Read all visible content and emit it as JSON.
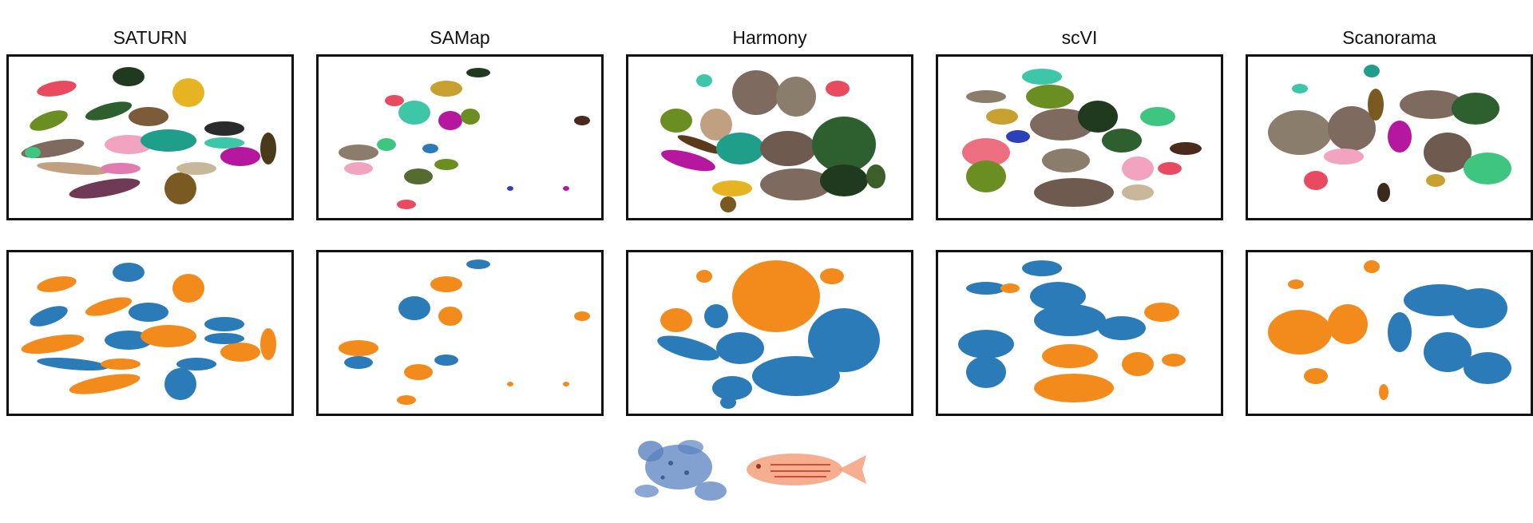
{
  "colors": {
    "species_a": "#2b7bb9",
    "species_b": "#f28b1c",
    "frame": "#111111"
  },
  "columns": [
    {
      "title": "SATURN"
    },
    {
      "title": "SAMap"
    },
    {
      "title": "Harmony"
    },
    {
      "title": "scVI"
    },
    {
      "title": "Scanorama"
    }
  ],
  "rows": [
    {
      "coloring": "cell type"
    },
    {
      "coloring": "species"
    }
  ],
  "legend": {
    "icons": [
      "frog-icon",
      "zebrafish-icon"
    ]
  },
  "chart_data": {
    "type": "scatter",
    "title": "",
    "xlabel": "",
    "ylabel": "",
    "grid": false,
    "panels": [
      {
        "method": "SATURN",
        "row": 1,
        "color_by": "cell type"
      },
      {
        "method": "SAMap",
        "row": 1,
        "color_by": "cell type"
      },
      {
        "method": "Harmony",
        "row": 1,
        "color_by": "cell type"
      },
      {
        "method": "scVI",
        "row": 1,
        "color_by": "cell type"
      },
      {
        "method": "Scanorama",
        "row": 1,
        "color_by": "cell type"
      },
      {
        "method": "SATURN",
        "row": 2,
        "color_by": "species"
      },
      {
        "method": "SAMap",
        "row": 2,
        "color_by": "species"
      },
      {
        "method": "Harmony",
        "row": 2,
        "color_by": "species"
      },
      {
        "method": "scVI",
        "row": 2,
        "color_by": "species"
      },
      {
        "method": "Scanorama",
        "row": 2,
        "color_by": "species"
      }
    ]
  }
}
